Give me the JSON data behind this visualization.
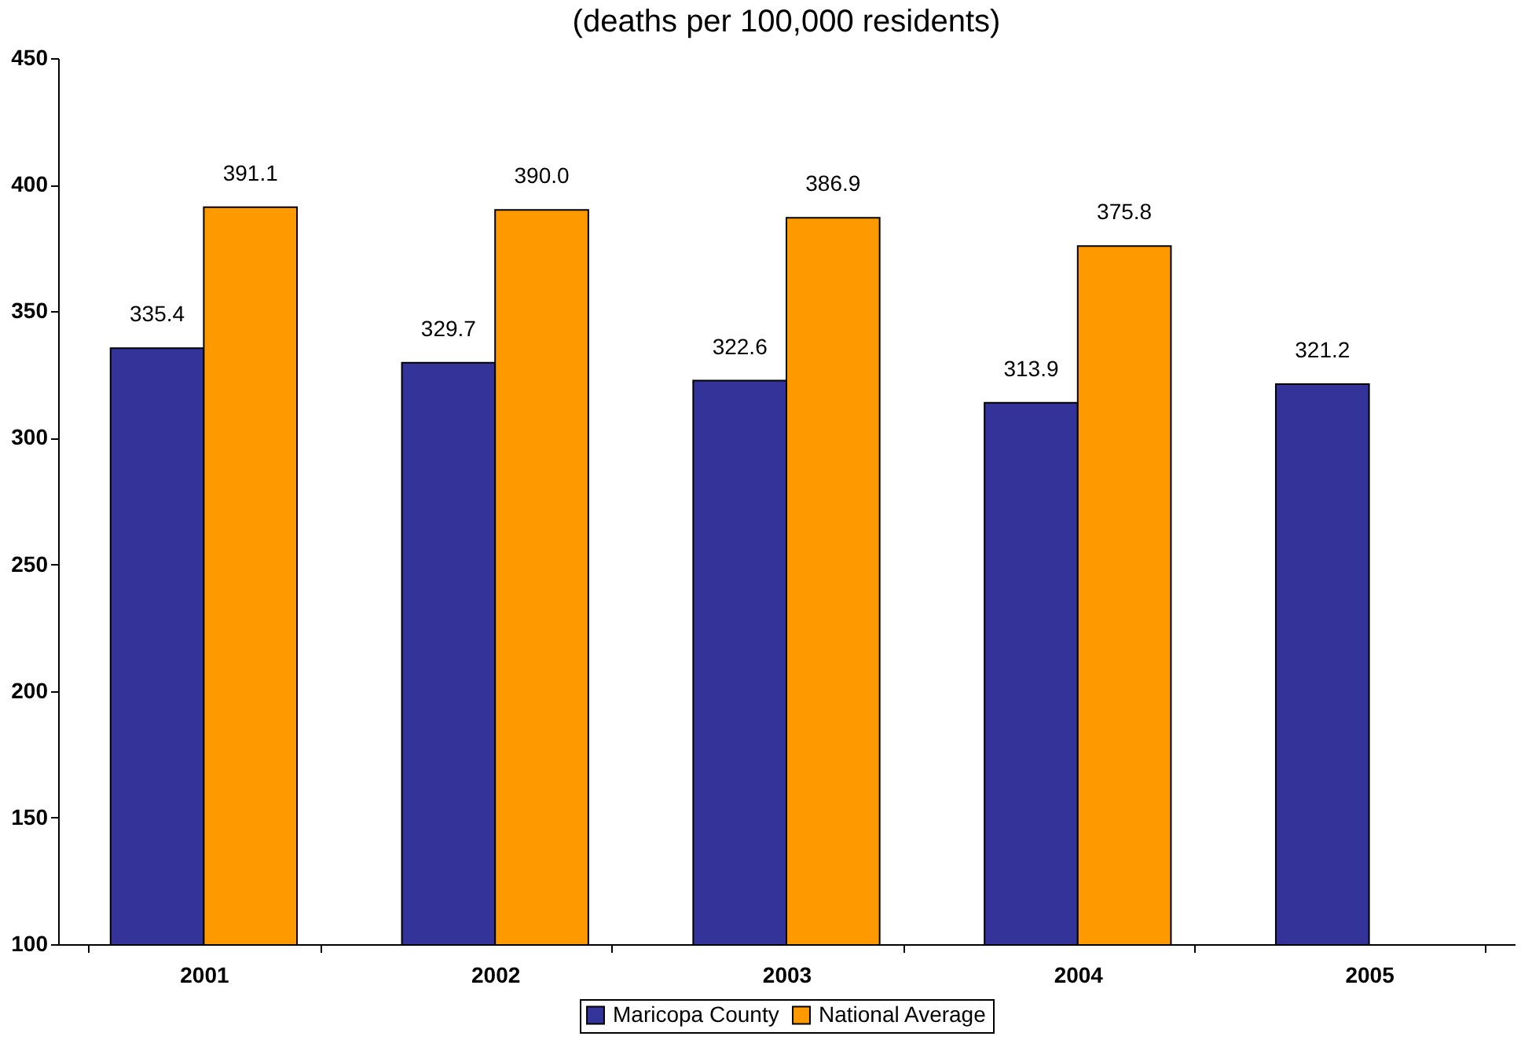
{
  "chart_data": {
    "type": "bar",
    "title": "(deaths per 100,000 residents)",
    "categories": [
      "2001",
      "2002",
      "2003",
      "2004",
      "2005"
    ],
    "series": [
      {
        "name": "Maricopa County",
        "color": "#333399",
        "values": [
          335.4,
          329.7,
          322.6,
          313.9,
          321.2
        ],
        "value_labels": [
          "335.4",
          "329.7",
          "322.6",
          "313.9",
          "321.2"
        ]
      },
      {
        "name": "National Average",
        "color": "#ff9900",
        "values": [
          391.1,
          390.0,
          386.9,
          375.8,
          null
        ],
        "value_labels": [
          "391.1",
          "390.0",
          "386.9",
          "375.8",
          null
        ]
      }
    ],
    "ylim": [
      100,
      450
    ],
    "yticks": [
      100,
      150,
      200,
      250,
      300,
      350,
      400,
      450
    ],
    "grid": false,
    "legend": "bottom"
  }
}
